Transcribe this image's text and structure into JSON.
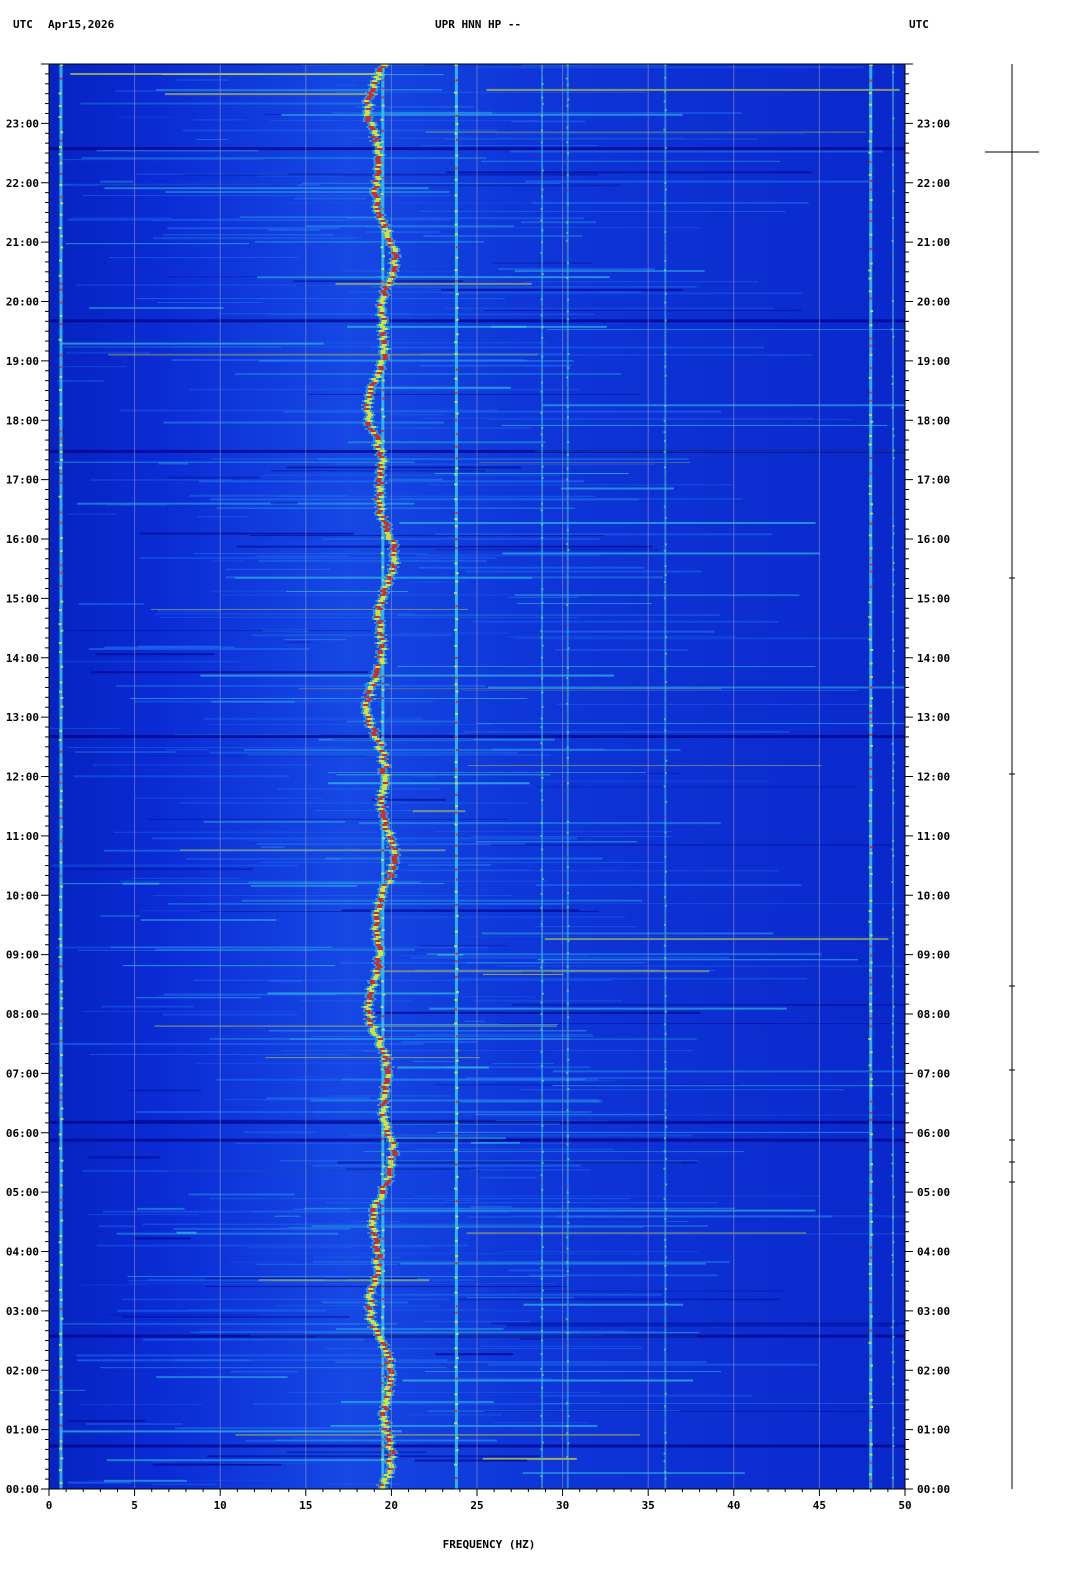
{
  "header": {
    "left_tz": "UTC",
    "date": "Apr15,2026",
    "station": "UPR HNN HP --",
    "right_tz": "UTC"
  },
  "chart_data": {
    "type": "heatmap",
    "title": "UPR HNN HP --",
    "xlabel": "FREQUENCY (HZ)",
    "ylabel": "",
    "xlim": [
      0,
      50
    ],
    "ylim_hours": [
      0,
      24
    ],
    "x_ticks": [
      0,
      5,
      10,
      15,
      20,
      25,
      30,
      35,
      40,
      45,
      50
    ],
    "y_tick_labels": [
      "00:00",
      "01:00",
      "02:00",
      "03:00",
      "04:00",
      "05:00",
      "06:00",
      "07:00",
      "08:00",
      "09:00",
      "10:00",
      "11:00",
      "12:00",
      "13:00",
      "14:00",
      "15:00",
      "16:00",
      "17:00",
      "18:00",
      "19:00",
      "20:00",
      "21:00",
      "22:00",
      "23:00"
    ],
    "colormap": [
      "#000088",
      "#0a2cd8",
      "#1f6cf0",
      "#35c8e8",
      "#e8e820",
      "#e02010"
    ],
    "background_color": "#0a2cd8",
    "persistent_lines_hz": [
      {
        "freq": 0.7,
        "intensity": "high"
      },
      {
        "freq": 19.5,
        "intensity": "high"
      },
      {
        "freq": 23.8,
        "intensity": "high"
      },
      {
        "freq": 28.8,
        "intensity": "medium"
      },
      {
        "freq": 30.3,
        "intensity": "medium"
      },
      {
        "freq": 36.0,
        "intensity": "medium"
      },
      {
        "freq": 48.0,
        "intensity": "high"
      },
      {
        "freq": 49.3,
        "intensity": "medium"
      }
    ]
  },
  "legend_bar": {
    "label": ""
  }
}
